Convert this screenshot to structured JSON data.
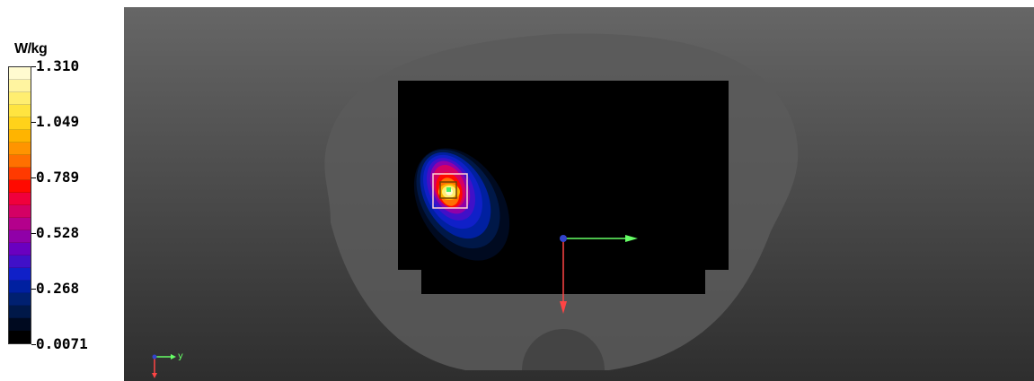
{
  "legend": {
    "unit": "W/kg",
    "ticks": [
      "1.310",
      "1.049",
      "0.789",
      "0.528",
      "0.268",
      "0.0071"
    ],
    "colors": [
      "#fffbd0",
      "#fff4a0",
      "#ffee70",
      "#ffe440",
      "#ffd21a",
      "#ffb400",
      "#ff9400",
      "#ff7000",
      "#ff3a00",
      "#ff0a00",
      "#f0003c",
      "#d40064",
      "#b4008c",
      "#9000a8",
      "#6a00c0",
      "#4010c8",
      "#1020c8",
      "#0020a0",
      "#002070",
      "#001848",
      "#000a20",
      "#000000"
    ]
  },
  "viewport": {
    "axis_label": "y",
    "colors": {
      "background_top": "#666666",
      "background_bottom": "#2e2e2e",
      "phantom_body": "#555555",
      "slice_plane": "#000000",
      "axis_x": "#ff4444",
      "axis_y": "#66ff66",
      "axis_origin": "#3344cc"
    },
    "icons": [
      "axis-gizmo-icon",
      "coordinate-origin-icon"
    ]
  }
}
